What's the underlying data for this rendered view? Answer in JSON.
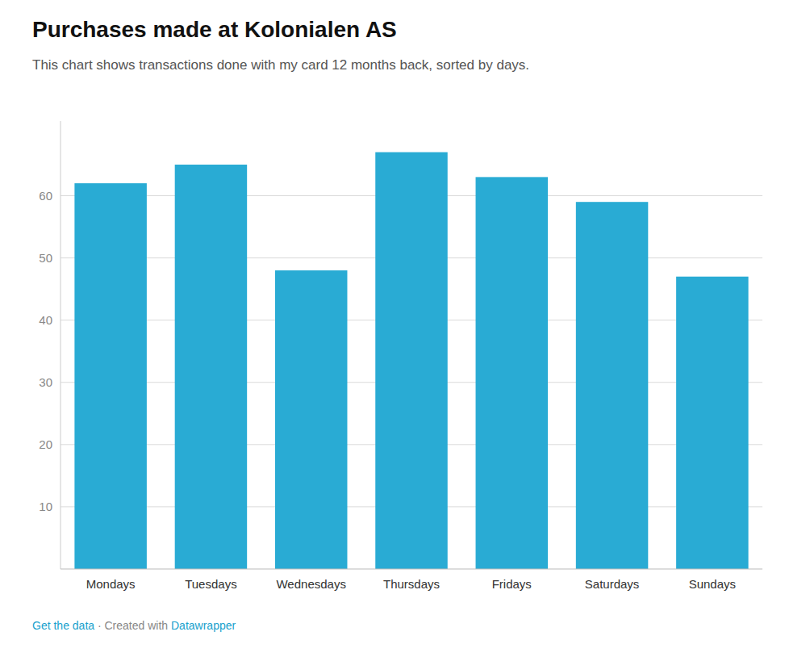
{
  "chart_data": {
    "type": "bar",
    "title": "Purchases made at Kolonialen AS",
    "subtitle": "This chart shows transactions done with my card 12 months back, sorted by days.",
    "categories": [
      "Mondays",
      "Tuesdays",
      "Wednesdays",
      "Thursdays",
      "Fridays",
      "Saturdays",
      "Sundays"
    ],
    "values": [
      62,
      65,
      48,
      67,
      63,
      59,
      47
    ],
    "color": "#29ABD4",
    "ylim": [
      0,
      72
    ],
    "yticks": [
      10,
      20,
      30,
      40,
      50,
      60
    ],
    "grid": true,
    "footer": [
      "Get the data",
      " · Created with ",
      "Datawrapper"
    ]
  }
}
